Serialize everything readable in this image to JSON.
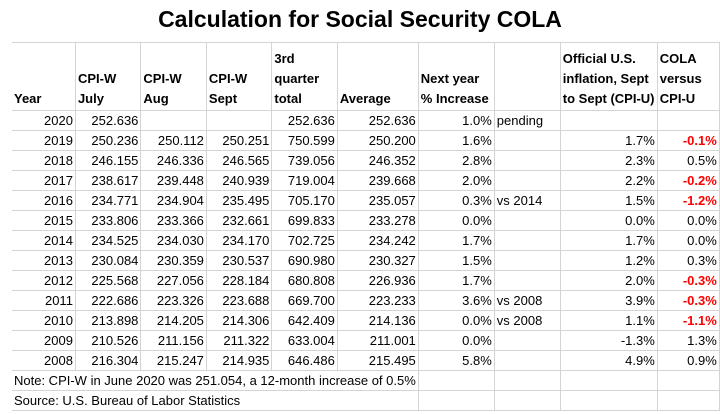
{
  "title": "Calculation for Social Security COLA",
  "colors": {
    "negative": "#ff0000",
    "grid": "#d4d4d4"
  },
  "headers": [
    "Year",
    "CPI-W July",
    "CPI-W Aug",
    "CPI-W Sept",
    "3rd quarter total",
    "Average",
    "Next year % Increase",
    "",
    "Official U.S. inflation, Sept to Sept (CPI-U)",
    "COLA versus CPI-U"
  ],
  "rows": [
    [
      "2020",
      "252.636",
      "",
      "",
      "252.636",
      "252.636",
      "1.0%",
      "pending",
      "",
      ""
    ],
    [
      "2019",
      "250.236",
      "250.112",
      "250.251",
      "750.599",
      "250.200",
      "1.6%",
      "",
      "1.7%",
      "-0.1%"
    ],
    [
      "2018",
      "246.155",
      "246.336",
      "246.565",
      "739.056",
      "246.352",
      "2.8%",
      "",
      "2.3%",
      "0.5%"
    ],
    [
      "2017",
      "238.617",
      "239.448",
      "240.939",
      "719.004",
      "239.668",
      "2.0%",
      "",
      "2.2%",
      "-0.2%"
    ],
    [
      "2016",
      "234.771",
      "234.904",
      "235.495",
      "705.170",
      "235.057",
      "0.3%",
      "vs 2014",
      "1.5%",
      "-1.2%"
    ],
    [
      "2015",
      "233.806",
      "233.366",
      "232.661",
      "699.833",
      "233.278",
      "0.0%",
      "",
      "0.0%",
      "0.0%"
    ],
    [
      "2014",
      "234.525",
      "234.030",
      "234.170",
      "702.725",
      "234.242",
      "1.7%",
      "",
      "1.7%",
      "0.0%"
    ],
    [
      "2013",
      "230.084",
      "230.359",
      "230.537",
      "690.980",
      "230.327",
      "1.5%",
      "",
      "1.2%",
      "0.3%"
    ],
    [
      "2012",
      "225.568",
      "227.056",
      "228.184",
      "680.808",
      "226.936",
      "1.7%",
      "",
      "2.0%",
      "-0.3%"
    ],
    [
      "2011",
      "222.686",
      "223.326",
      "223.688",
      "669.700",
      "223.233",
      "3.6%",
      "vs 2008",
      "3.9%",
      "-0.3%"
    ],
    [
      "2010",
      "213.898",
      "214.205",
      "214.306",
      "642.409",
      "214.136",
      "0.0%",
      "vs 2008",
      "1.1%",
      "-1.1%"
    ],
    [
      "2009",
      "210.526",
      "211.156",
      "211.322",
      "633.004",
      "211.001",
      "0.0%",
      "",
      "-1.3%",
      "1.3%"
    ],
    [
      "2008",
      "216.304",
      "215.247",
      "214.935",
      "646.486",
      "215.495",
      "5.8%",
      "",
      "4.9%",
      "0.9%"
    ]
  ],
  "note": "Note: CPI-W in June 2020 was 251.054, a 12-month increase of 0.5%",
  "source": "Source: U.S. Bureau of Labor Statistics"
}
